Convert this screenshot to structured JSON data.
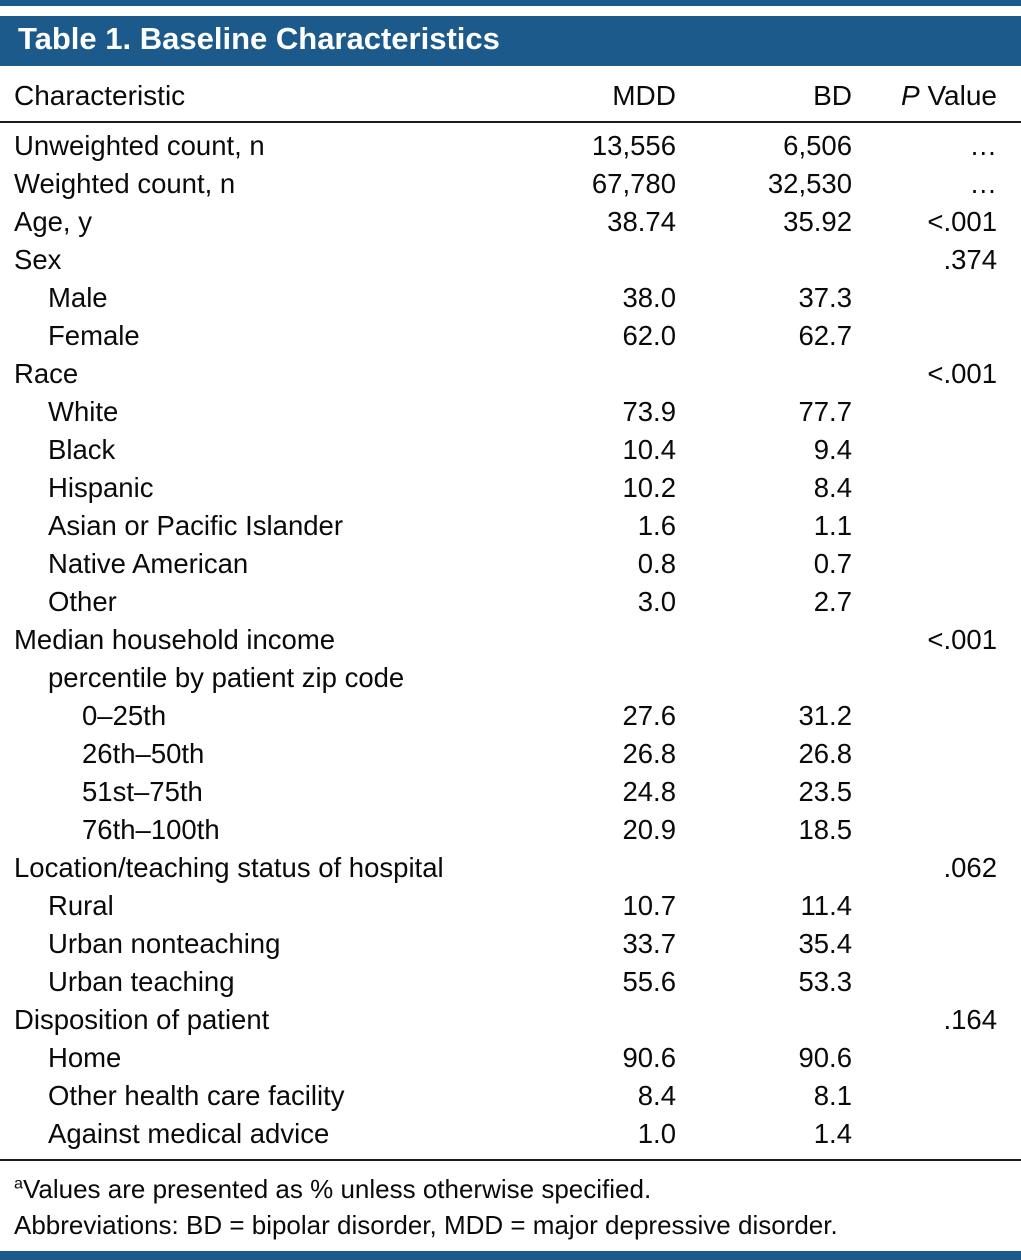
{
  "colors": {
    "accent": "#1b5a8a",
    "text": "#0a0a0a",
    "title_text": "#ffffff"
  },
  "title": "Table 1. Baseline Characteristics",
  "columns": {
    "characteristic": "Characteristic",
    "mdd": "MDD",
    "bd": "BD",
    "p_italic": "P",
    "p_rest": " Value"
  },
  "rows": [
    {
      "label": "Unweighted count, n",
      "indent": 0,
      "mdd": "13,556",
      "bd": "6,506",
      "p": "…"
    },
    {
      "label": "Weighted count, n",
      "indent": 0,
      "mdd": "67,780",
      "bd": "32,530",
      "p": "…"
    },
    {
      "label": "Age, y",
      "indent": 0,
      "mdd": "38.74",
      "bd": "35.92",
      "p": "<.001"
    },
    {
      "label": "Sex",
      "indent": 0,
      "mdd": "",
      "bd": "",
      "p": ".374"
    },
    {
      "label": "Male",
      "indent": 1,
      "mdd": "38.0",
      "bd": "37.3",
      "p": ""
    },
    {
      "label": "Female",
      "indent": 1,
      "mdd": "62.0",
      "bd": "62.7",
      "p": ""
    },
    {
      "label": "Race",
      "indent": 0,
      "mdd": "",
      "bd": "",
      "p": "<.001"
    },
    {
      "label": "White",
      "indent": 1,
      "mdd": "73.9",
      "bd": "77.7",
      "p": ""
    },
    {
      "label": "Black",
      "indent": 1,
      "mdd": "10.4",
      "bd": "9.4",
      "p": ""
    },
    {
      "label": "Hispanic",
      "indent": 1,
      "mdd": "10.2",
      "bd": "8.4",
      "p": ""
    },
    {
      "label": "Asian or Pacific Islander",
      "indent": 1,
      "mdd": "1.6",
      "bd": "1.1",
      "p": ""
    },
    {
      "label": "Native American",
      "indent": 1,
      "mdd": "0.8",
      "bd": "0.7",
      "p": ""
    },
    {
      "label": "Other",
      "indent": 1,
      "mdd": "3.0",
      "bd": "2.7",
      "p": ""
    },
    {
      "label": "Median household income",
      "indent": 0,
      "mdd": "",
      "bd": "",
      "p": "<.001"
    },
    {
      "label": "percentile by patient zip code",
      "indent": 1,
      "mdd": "",
      "bd": "",
      "p": ""
    },
    {
      "label": "0–25th",
      "indent": 2,
      "mdd": "27.6",
      "bd": "31.2",
      "p": ""
    },
    {
      "label": "26th–50th",
      "indent": 2,
      "mdd": "26.8",
      "bd": "26.8",
      "p": ""
    },
    {
      "label": "51st–75th",
      "indent": 2,
      "mdd": "24.8",
      "bd": "23.5",
      "p": ""
    },
    {
      "label": "76th–100th",
      "indent": 2,
      "mdd": "20.9",
      "bd": "18.5",
      "p": ""
    },
    {
      "label": "Location/teaching status of hospital",
      "indent": 0,
      "mdd": "",
      "bd": "",
      "p": ".062"
    },
    {
      "label": "Rural",
      "indent": 1,
      "mdd": "10.7",
      "bd": "11.4",
      "p": ""
    },
    {
      "label": "Urban nonteaching",
      "indent": 1,
      "mdd": "33.7",
      "bd": "35.4",
      "p": ""
    },
    {
      "label": "Urban teaching",
      "indent": 1,
      "mdd": "55.6",
      "bd": "53.3",
      "p": ""
    },
    {
      "label": "Disposition of patient",
      "indent": 0,
      "mdd": "",
      "bd": "",
      "p": ".164"
    },
    {
      "label": "Home",
      "indent": 1,
      "mdd": "90.6",
      "bd": "90.6",
      "p": ""
    },
    {
      "label": "Other health care facility",
      "indent": 1,
      "mdd": "8.4",
      "bd": "8.1",
      "p": ""
    },
    {
      "label": "Against medical advice",
      "indent": 1,
      "mdd": "1.0",
      "bd": "1.4",
      "p": ""
    }
  ],
  "footnotes": [
    {
      "sup": "a",
      "text": "Values are presented as % unless otherwise specified."
    },
    {
      "sup": "",
      "text": "Abbreviations: BD = bipolar disorder, MDD = major depressive disorder."
    }
  ]
}
